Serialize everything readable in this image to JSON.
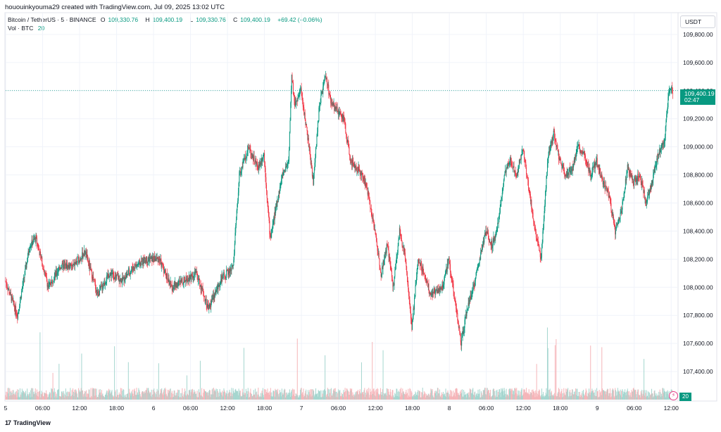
{
  "header": {
    "credit": "hououinkyouma29 created with TradingView.com, Jul 09, 2025 13:02 UTC"
  },
  "legend": {
    "symbol": "Bitcoin / TetherUS · 5 · BINANCE",
    "open_label": "O",
    "open": "109,330.76",
    "high_label": "H",
    "high": "109,400.19",
    "low_label": "L",
    "low": "109,330.76",
    "close_label": "C",
    "close": "109,400.19",
    "change": "+69.42 (+0.06%)",
    "vol_label": "Vol · BTC",
    "vol_value": "20"
  },
  "currency": "USDT",
  "price_badge": {
    "price": "109,400.19",
    "countdown": "02:47"
  },
  "vol_badge": "20",
  "footer": {
    "logo_mark": "17",
    "brand": "TradingView"
  },
  "colors": {
    "up": "#089981",
    "down": "#f23645",
    "vol_up": "#a5d6cf",
    "vol_down": "#f5b5b9",
    "grid": "#f0f3fa",
    "last_price_line": "#089981"
  },
  "chart_data": {
    "type": "candlestick",
    "ylim": [
      107200,
      109950
    ],
    "y_ticks": [
      109800,
      109600,
      109400,
      109200,
      109000,
      108800,
      108600,
      108400,
      108200,
      108000,
      107800,
      107600,
      107400
    ],
    "y_tick_labels": [
      "109,800.00",
      "109,600.00",
      "109,400.00",
      "109,200.00",
      "109,000.00",
      "108,800.00",
      "108,600.00",
      "108,400.00",
      "108,200.00",
      "108,000.00",
      "107,800.00",
      "107,600.00",
      "107,400.00"
    ],
    "x_tick_labels": [
      "5",
      "06:00",
      "12:00",
      "18:00",
      "6",
      "06:00",
      "12:00",
      "18:00",
      "7",
      "06:00",
      "12:00",
      "18:00",
      "8",
      "06:00",
      "12:00",
      "18:00",
      "9",
      "06:00",
      "12:00"
    ],
    "x_tick_hours": [
      0,
      6,
      12,
      18,
      24,
      30,
      36,
      42,
      48,
      54,
      60,
      66,
      72,
      78,
      84,
      90,
      96,
      102,
      108
    ],
    "x_range_hours": [
      0,
      109
    ],
    "last_price": 109400.19,
    "price_path": [
      [
        0,
        108050
      ],
      [
        2,
        107800
      ],
      [
        4,
        108300
      ],
      [
        5,
        108350
      ],
      [
        7,
        108000
      ],
      [
        9,
        108150
      ],
      [
        11,
        108150
      ],
      [
        13,
        108250
      ],
      [
        15,
        107950
      ],
      [
        17,
        108100
      ],
      [
        19,
        108050
      ],
      [
        21,
        108150
      ],
      [
        23,
        108200
      ],
      [
        25,
        108200
      ],
      [
        27,
        108000
      ],
      [
        29,
        108050
      ],
      [
        31,
        108100
      ],
      [
        33,
        107850
      ],
      [
        35,
        108050
      ],
      [
        37,
        108150
      ],
      [
        38,
        108800
      ],
      [
        39.5,
        109000
      ],
      [
        41,
        108850
      ],
      [
        42,
        108950
      ],
      [
        43,
        108350
      ],
      [
        45,
        108800
      ],
      [
        46,
        108900
      ],
      [
        46.5,
        109500
      ],
      [
        47,
        109300
      ],
      [
        48,
        109400
      ],
      [
        49,
        109100
      ],
      [
        50,
        108750
      ],
      [
        51,
        109300
      ],
      [
        52,
        109500
      ],
      [
        53,
        109300
      ],
      [
        55,
        109200
      ],
      [
        56,
        108900
      ],
      [
        58,
        108800
      ],
      [
        59,
        108650
      ],
      [
        60,
        108400
      ],
      [
        61,
        108100
      ],
      [
        62,
        108300
      ],
      [
        63,
        108000
      ],
      [
        64,
        108400
      ],
      [
        65,
        108200
      ],
      [
        66,
        107700
      ],
      [
        67,
        108200
      ],
      [
        68,
        108100
      ],
      [
        69,
        107950
      ],
      [
        71,
        108000
      ],
      [
        72,
        108200
      ],
      [
        73,
        107900
      ],
      [
        74,
        107600
      ],
      [
        75,
        107850
      ],
      [
        76,
        108000
      ],
      [
        77,
        108200
      ],
      [
        78,
        108400
      ],
      [
        79,
        108300
      ],
      [
        80,
        108450
      ],
      [
        81,
        108800
      ],
      [
        82,
        108900
      ],
      [
        83,
        108800
      ],
      [
        84,
        109000
      ],
      [
        85,
        108700
      ],
      [
        86,
        108400
      ],
      [
        87,
        108200
      ],
      [
        88,
        108900
      ],
      [
        89,
        109100
      ],
      [
        90,
        108900
      ],
      [
        91,
        108800
      ],
      [
        92,
        108850
      ],
      [
        93,
        109000
      ],
      [
        94,
        108950
      ],
      [
        95,
        108800
      ],
      [
        96,
        108900
      ],
      [
        97,
        108750
      ],
      [
        98,
        108650
      ],
      [
        99,
        108400
      ],
      [
        100,
        108550
      ],
      [
        101,
        108850
      ],
      [
        102,
        108750
      ],
      [
        103,
        108800
      ],
      [
        104,
        108600
      ],
      [
        105,
        108750
      ],
      [
        106,
        108950
      ],
      [
        107,
        109050
      ],
      [
        107.7,
        109400
      ],
      [
        108.3,
        109400.19
      ]
    ]
  }
}
